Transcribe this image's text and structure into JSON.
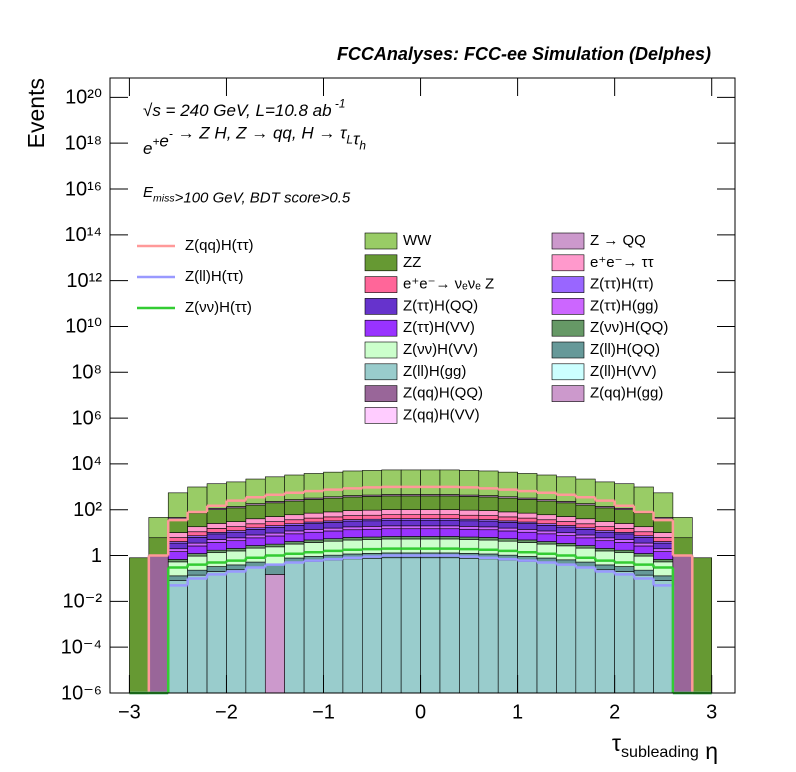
{
  "chart_data": {
    "type": "stacked_histogram",
    "title": "FCCAnalyses: FCC-ee Simulation (Delphes)",
    "y_label": "Events",
    "x_label": [
      {
        "text": "τ"
      },
      {
        "text": "subleading",
        "shift": "sub"
      },
      {
        "text": " η"
      }
    ],
    "annotations": [
      [
        {
          "text": "√s = 240 GeV, L=10.8 ab"
        },
        {
          "text": " -1",
          "shift": "sup"
        }
      ],
      [
        {
          "text": "e"
        },
        {
          "text": "+",
          "shift": "sup"
        },
        {
          "text": "e"
        },
        {
          "text": "-",
          "shift": "sup"
        },
        {
          "text": " → Z H, Z  → qq, H  → τ"
        },
        {
          "text": "L",
          "shift": "sub"
        },
        {
          "text": "τ"
        },
        {
          "text": "h",
          "shift": "sub"
        }
      ],
      [
        {
          "text": "E"
        },
        {
          "text": "miss",
          "shift": "sub"
        },
        {
          "text": ">100 GeV, BDT score>0.5"
        }
      ]
    ],
    "log_y": true,
    "xlim": [
      -3.2,
      3.24
    ],
    "ylim": [
      1e-06,
      7e+20
    ],
    "xticks": [
      {
        "value": -3,
        "label": "−3"
      },
      {
        "value": -2,
        "label": "−2"
      },
      {
        "value": -1,
        "label": "−1"
      },
      0,
      1,
      2,
      3
    ],
    "yticks": [
      {
        "value": 1e-06,
        "label": "10⁻⁶"
      },
      {
        "value": 0.0001,
        "label": "10⁻⁴"
      },
      {
        "value": 0.01,
        "label": "10⁻²"
      },
      1,
      {
        "value": 100.0,
        "label": "10²"
      },
      {
        "value": 10000.0,
        "label": "10⁴"
      },
      {
        "value": 1000000.0,
        "label": "10⁶"
      },
      {
        "value": 100000000.0,
        "label": "10⁸"
      },
      {
        "value": 10000000000.0,
        "label": "10¹⁰"
      },
      {
        "value": 1000000000000.0,
        "label": "10¹²"
      },
      {
        "value": 100000000000000.0,
        "label": "10¹⁴"
      },
      {
        "value": 1e+16,
        "label": "10¹⁶"
      },
      {
        "value": 1e+18,
        "label": "10¹⁸"
      },
      {
        "value": 1e+20,
        "label": "10²⁰"
      }
    ],
    "bins": [
      -3,
      -2.8,
      -2.6,
      -2.4,
      -2.2,
      -2,
      -1.8,
      -1.6,
      -1.4,
      -1.2,
      -1,
      -0.8,
      -0.6,
      -0.4,
      -0.2,
      0,
      0.2,
      0.4,
      0.6,
      0.8,
      1,
      1.2,
      1.4,
      1.6,
      1.8,
      2,
      2.2,
      2.4,
      2.6,
      2.8,
      3
    ],
    "series": [
      {
        "name": "WW",
        "color": "#99cc66",
        "values": [
          0,
          40,
          500,
          900,
          1250,
          1500,
          2000,
          2500,
          3000,
          3500,
          4000,
          4500,
          4750,
          5000,
          5000,
          5000,
          5000,
          4750,
          4500,
          4000,
          3500,
          3000,
          2500,
          2000,
          1500,
          1250,
          900,
          500,
          40,
          0
        ]
      },
      {
        "name": "Z → QQ",
        "color": "#cc99cc",
        "values": [
          0,
          0,
          6,
          11,
          15,
          18,
          24,
          30,
          36,
          42,
          48,
          54,
          57,
          60,
          60,
          60,
          60,
          57,
          54,
          48,
          42,
          36,
          30,
          24,
          18,
          15,
          11,
          6,
          0,
          0
        ]
      },
      {
        "name": "ZZ",
        "color": "#669933",
        "values": [
          0.8,
          5,
          30,
          54,
          75,
          90,
          120,
          150,
          180,
          210,
          240,
          270,
          285,
          300,
          300,
          300,
          300,
          285,
          270,
          240,
          210,
          180,
          150,
          120,
          90,
          75,
          54,
          30,
          5,
          0.8
        ]
      },
      {
        "name": "e⁺e⁻→ ττ",
        "color": "#ff99cc",
        "values": [
          0,
          0,
          4,
          7.2,
          10,
          12,
          16,
          20,
          24,
          28,
          32,
          36,
          38,
          40,
          40,
          40,
          40,
          38,
          36,
          32,
          28,
          24,
          20,
          16,
          12,
          10,
          7.2,
          4,
          0,
          0
        ]
      },
      {
        "name": "e⁺e⁻→ νₑνₑ Z",
        "color": "#ff6699",
        "values": [
          0,
          0,
          2,
          3.6,
          5,
          6,
          8,
          10,
          12,
          14,
          16,
          18,
          19,
          20,
          20,
          20,
          20,
          19,
          18,
          16,
          14,
          12,
          10,
          8,
          6,
          5,
          3.6,
          2,
          0,
          0
        ]
      },
      {
        "name": "Z(ττ)H(ττ)",
        "color": "#9966ff",
        "values": [
          0,
          0,
          0.6,
          1.1,
          1.5,
          1.8,
          2.4,
          3,
          3.6,
          4.2,
          4.8,
          5.4,
          5.7,
          6,
          6,
          6,
          6,
          5.7,
          5.4,
          4.8,
          4.2,
          3.6,
          3,
          2.4,
          1.8,
          1.5,
          1.1,
          0.6,
          0,
          0
        ]
      },
      {
        "name": "Z(ττ)H(QQ)",
        "color": "#6633cc",
        "values": [
          0,
          0,
          1.5,
          2.7,
          3.8,
          4.5,
          6,
          7.5,
          9,
          11,
          12,
          14,
          14,
          15,
          15,
          15,
          15,
          14,
          14,
          12,
          11,
          9,
          7.5,
          6,
          4.5,
          3.8,
          2.7,
          1.5,
          0,
          0
        ]
      },
      {
        "name": "Z(ττ)H(gg)",
        "color": "#cc66ff",
        "values": [
          0,
          0,
          0.5,
          0.9,
          1.3,
          1.5,
          2,
          2.5,
          3,
          3.5,
          4,
          4.5,
          4.8,
          5,
          5,
          5,
          5,
          4.8,
          4.5,
          4,
          3.5,
          3,
          2.5,
          2,
          1.5,
          1.3,
          0.9,
          0.5,
          0,
          0
        ]
      },
      {
        "name": "Z(ττ)H(VV)",
        "color": "#9933ff",
        "values": [
          0,
          0,
          0.8,
          1.4,
          2,
          2.4,
          3.2,
          4,
          4.8,
          5.6,
          6.4,
          7.2,
          7.6,
          8,
          8,
          8,
          8,
          7.6,
          7.2,
          6.4,
          5.6,
          4.8,
          4,
          3.2,
          2.4,
          2,
          1.4,
          0.8,
          0,
          0
        ]
      },
      {
        "name": "Z(νν)H(QQ)",
        "color": "#669966",
        "values": [
          0,
          0,
          0.15,
          0.27,
          0.38,
          0.45,
          0.6,
          0.75,
          0.9,
          1.1,
          1.2,
          1.4,
          1.4,
          1.5,
          1.5,
          1.5,
          1.5,
          1.4,
          1.4,
          1.2,
          1.1,
          0.9,
          0.75,
          0.6,
          0.45,
          0.38,
          0.27,
          0.15,
          0,
          0
        ]
      },
      {
        "name": "Z(νν)H(VV)",
        "color": "#ccffcc",
        "values": [
          0,
          0,
          0.4,
          0.72,
          1,
          1.2,
          1.6,
          2,
          2.4,
          2.8,
          3.2,
          3.6,
          3.8,
          4,
          4,
          4,
          4,
          3.8,
          3.6,
          3.2,
          2.8,
          2.4,
          2,
          1.6,
          1.2,
          1,
          0.72,
          0.4,
          0,
          0
        ]
      },
      {
        "name": "Z(ll)H(QQ)",
        "color": "#669999",
        "values": [
          0,
          0,
          0.05,
          0.09,
          0.13,
          0.15,
          0.2,
          0.25,
          0.3,
          0.35,
          0.4,
          0.45,
          0.48,
          0.5,
          0.5,
          0.5,
          0.5,
          0.48,
          0.45,
          0.4,
          0.35,
          0.3,
          0.25,
          0.2,
          0.15,
          0.13,
          0.09,
          0.05,
          0,
          0
        ]
      },
      {
        "name": "Z(ll)H(gg)",
        "color": "#99cccc",
        "values": [
          0,
          0,
          0.08,
          0.14,
          0.2,
          0.24,
          0.32,
          0,
          0.48,
          0.56,
          0.64,
          0.72,
          0.76,
          0.8,
          0.8,
          0.8,
          0.8,
          0.76,
          0.72,
          0.64,
          0.56,
          0.48,
          0.4,
          0.32,
          0.24,
          0.2,
          0.14,
          0.08,
          0,
          0
        ]
      },
      {
        "name": "Z(ll)H(VV)",
        "color": "#ccffff",
        "values": [
          0,
          0,
          0,
          0,
          0,
          0,
          0,
          0,
          0,
          0,
          0,
          0,
          0,
          0,
          0,
          0,
          0,
          0,
          0,
          0,
          0,
          0,
          0,
          0,
          0,
          0,
          0,
          0,
          0,
          0
        ]
      },
      {
        "name": "Z(qq)H(QQ)",
        "color": "#996699",
        "values": [
          0,
          1,
          0,
          0,
          0,
          0,
          0,
          0,
          0,
          0,
          0,
          0,
          0,
          0,
          0,
          0,
          0,
          0,
          0,
          0,
          0,
          0,
          0,
          0,
          0,
          0,
          0,
          0,
          1,
          0
        ]
      },
      {
        "name": "Z(qq)H(gg)",
        "color": "#cc99cc",
        "values": [
          0,
          0,
          0,
          0,
          0,
          0,
          0,
          0.15,
          0,
          0,
          0,
          0,
          0,
          0,
          0,
          0,
          0,
          0,
          0,
          0,
          0,
          0,
          0,
          0,
          0,
          0,
          0,
          0,
          0,
          0
        ]
      },
      {
        "name": "Z(qq)H(VV)",
        "color": "#ffccff",
        "values": [
          0,
          0,
          0,
          0,
          0,
          0,
          0,
          0,
          0,
          0,
          0,
          0,
          0,
          0,
          0,
          0,
          0,
          0,
          0,
          0,
          0,
          0,
          0,
          0,
          0,
          0,
          0,
          0,
          0,
          0
        ]
      }
    ],
    "line_series": [
      {
        "name": "Z(qq)H(ττ)",
        "color": "#ff9999",
        "values": [
          0,
          1,
          35,
          80,
          150,
          250,
          350,
          450,
          550,
          650,
          750,
          850,
          950,
          1000,
          1000,
          1000,
          1000,
          950,
          850,
          750,
          650,
          550,
          450,
          350,
          250,
          150,
          80,
          35,
          1,
          0
        ]
      },
      {
        "name": "Z(ll)H(ττ)",
        "color": "#9999ff",
        "values": [
          0,
          0,
          0.05,
          0.1,
          0.15,
          0.2,
          0.3,
          0.4,
          0.5,
          0.6,
          0.7,
          0.8,
          0.9,
          1,
          1,
          1,
          1,
          0.9,
          0.8,
          0.7,
          0.6,
          0.5,
          0.4,
          0.3,
          0.2,
          0.15,
          0.1,
          0.05,
          0,
          0
        ]
      },
      {
        "name": "Z(νν)H(ττ)",
        "color": "#33cc33",
        "values": [
          0,
          0,
          0.3,
          0.4,
          0.5,
          0.6,
          0.8,
          1,
          1.2,
          1.4,
          1.6,
          1.8,
          1.9,
          2,
          2,
          2,
          2,
          1.9,
          1.8,
          1.6,
          1.4,
          1.2,
          1,
          0.8,
          0.6,
          0.5,
          0.4,
          0.3,
          0,
          0
        ]
      }
    ]
  }
}
